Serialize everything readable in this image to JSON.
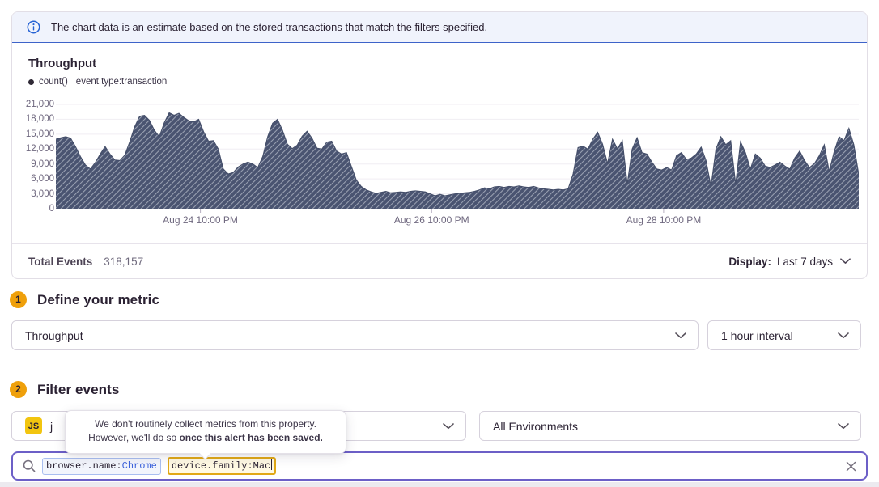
{
  "banner": {
    "text": "The chart data is an estimate based on the stored transactions that match the filters specified."
  },
  "chart_panel": {
    "title": "Throughput",
    "legend": {
      "series": "count()",
      "query": "event.type:transaction"
    },
    "footer": {
      "total_events_label": "Total Events",
      "total_events_value": "318,157",
      "display_label": "Display:",
      "display_value": "Last 7 days"
    }
  },
  "chart_data": {
    "type": "area",
    "title": "Throughput",
    "ylabel": "",
    "xlabel": "",
    "ylim": [
      0,
      21000
    ],
    "ytick_step": 3000,
    "ytick_labels": [
      "0",
      "3,000",
      "6,000",
      "9,000",
      "12,000",
      "15,000",
      "18,000",
      "21,000"
    ],
    "xticks": [
      {
        "label": "Aug 24 10:00 PM",
        "pos": 0.18
      },
      {
        "label": "Aug 26 10:00 PM",
        "pos": 0.468
      },
      {
        "label": "Aug 28 10:00 PM",
        "pos": 0.757
      }
    ],
    "grid": "horizontal",
    "legend_position": "top-left",
    "fill_color": "#4A5471",
    "hatch_color": "#9AA1B2",
    "line_color": "#434D68",
    "series": [
      {
        "name": "count() event.type:transaction",
        "values": [
          14000,
          14300,
          14500,
          14200,
          12500,
          10500,
          8800,
          8000,
          9300,
          11000,
          12500,
          11000,
          9800,
          9700,
          10800,
          13500,
          16500,
          18600,
          18800,
          17800,
          15800,
          14500,
          17300,
          19300,
          18800,
          19200,
          18400,
          17700,
          17500,
          18000,
          15500,
          13600,
          13700,
          12000,
          8000,
          7000,
          7300,
          8400,
          9000,
          9400,
          9000,
          8300,
          10500,
          14500,
          17200,
          18000,
          15800,
          13000,
          12100,
          12800,
          14600,
          15600,
          14200,
          12200,
          12000,
          13400,
          13600,
          11600,
          11000,
          11300,
          8500,
          5800,
          4500,
          3800,
          3400,
          3100,
          3300,
          3500,
          3200,
          3300,
          3400,
          3300,
          3500,
          3600,
          3500,
          3400,
          3000,
          2600,
          2900,
          2600,
          2800,
          3000,
          3100,
          3200,
          3300,
          3500,
          3800,
          4200,
          4000,
          4400,
          4500,
          4300,
          4500,
          4400,
          4600,
          4400,
          4300,
          4500,
          4200,
          4000,
          3900,
          3800,
          3900,
          3800,
          4000,
          7000,
          12300,
          12600,
          12000,
          14000,
          15400,
          13000,
          9100,
          14000,
          12100,
          13700,
          5000,
          12000,
          14300,
          11300,
          11000,
          9400,
          8000,
          7800,
          8300,
          7800,
          10700,
          11300,
          9900,
          10200,
          11000,
          12400,
          9700,
          4500,
          12000,
          14500,
          12900,
          13700,
          5000,
          13500,
          11300,
          8000,
          11000,
          10200,
          8600,
          8300,
          8800,
          9400,
          8600,
          8000,
          10200,
          11600,
          9700,
          8300,
          9100,
          10700,
          12900,
          7500,
          11500,
          14500,
          13700,
          16200,
          12900,
          6900
        ]
      }
    ]
  },
  "sections": {
    "metric": {
      "step": "1",
      "heading": "Define your metric",
      "metric_value": "Throughput",
      "interval_value": "1 hour interval"
    },
    "filter": {
      "step": "2",
      "heading": "Filter events",
      "project_badge": "JS",
      "project_visible_text": "j",
      "environment_value": "All Environments"
    }
  },
  "tooltip": {
    "line1": "We don't routinely collect metrics from this property.",
    "line2_prefix": "However, we'll do so ",
    "line2_bold": "once this alert has been saved."
  },
  "search": {
    "tokens": [
      {
        "key": "browser.name:",
        "value": "Chrome"
      },
      {
        "key": "device.family:",
        "value": "Mac"
      }
    ]
  },
  "colors": {
    "accent_purple": "#6C5FC7",
    "banner_bg": "#F0F3FC",
    "banner_border": "#3D63C9",
    "info_icon_blue": "#2562D4",
    "panel_border": "#E2DEE6",
    "step_badge_bg": "#EFA00B",
    "js_badge_bg": "#F2C50F",
    "token_filter_border": "#A9BEF0",
    "token_value_blue": "#3D63DC",
    "token_active_border": "#E1A816",
    "chart_fill": "#4A5471",
    "chart_hatch": "#9AA1B2"
  }
}
